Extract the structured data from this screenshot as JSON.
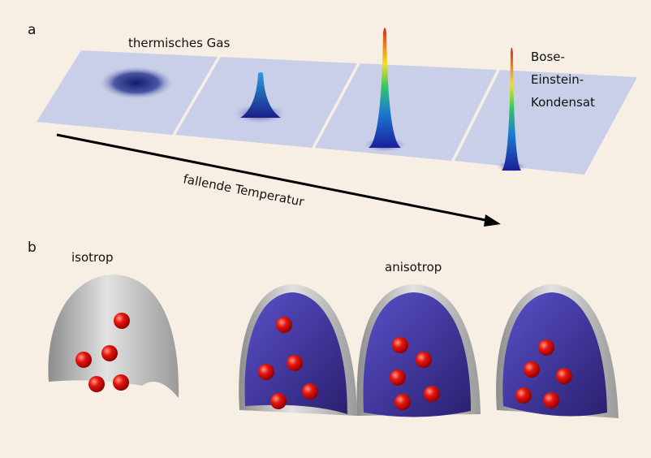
{
  "panel_a": {
    "label": "a",
    "thermal_label": "thermisches Gas",
    "bec_label": [
      "Bose-",
      "Einstein-",
      "Kondensat"
    ],
    "arrow_label": "fallende Temperatur"
  },
  "panel_b": {
    "label": "b",
    "isotropic_label": "isotrop",
    "anisotropic_label": "anisotrop"
  }
}
